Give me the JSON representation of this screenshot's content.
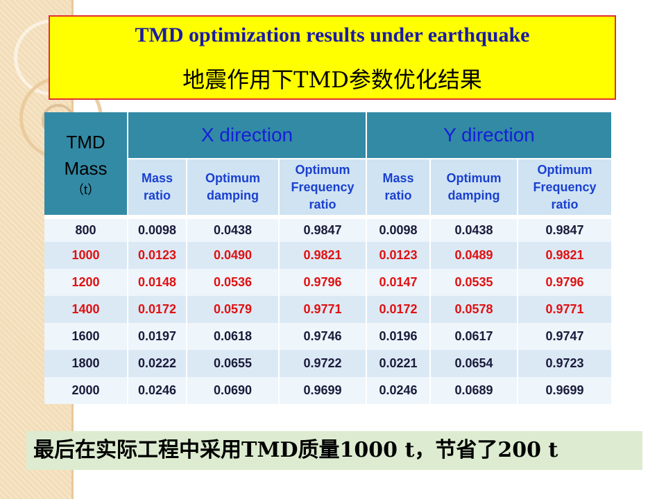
{
  "title": {
    "en": "TMD optimization results under earthquake",
    "zh": "地震作用下TMD参数优化结果"
  },
  "table": {
    "mass_header_line1": "TMD",
    "mass_header_line2": "Mass",
    "mass_header_unit": "（t）",
    "x_direction": "X direction",
    "y_direction": "Y direction",
    "sub_headers": {
      "mass_ratio": [
        "Mass",
        "ratio"
      ],
      "optimum_damping": [
        "Optimum",
        "damping"
      ],
      "optimum_frequency": [
        "Optimum",
        "Frequency",
        "ratio"
      ]
    },
    "rows": [
      {
        "mass": "800",
        "x_mr": "0.0098",
        "x_od": "0.0438",
        "x_of": "0.9847",
        "y_mr": "0.0098",
        "y_od": "0.0438",
        "y_of": "0.9847",
        "highlight": false
      },
      {
        "mass": "1000",
        "x_mr": "0.0123",
        "x_od": "0.0490",
        "x_of": "0.9821",
        "y_mr": "0.0123",
        "y_od": "0.0489",
        "y_of": "0.9821",
        "highlight": true
      },
      {
        "mass": "1200",
        "x_mr": "0.0148",
        "x_od": "0.0536",
        "x_of": "0.9796",
        "y_mr": "0.0147",
        "y_od": "0.0535",
        "y_of": "0.9796",
        "highlight": true
      },
      {
        "mass": "1400",
        "x_mr": "0.0172",
        "x_od": "0.0579",
        "x_of": "0.9771",
        "y_mr": "0.0172",
        "y_od": "0.0578",
        "y_of": "0.9771",
        "highlight": true
      },
      {
        "mass": "1600",
        "x_mr": "0.0197",
        "x_od": "0.0618",
        "x_of": "0.9746",
        "y_mr": "0.0196",
        "y_od": "0.0617",
        "y_of": "0.9747",
        "highlight": false
      },
      {
        "mass": "1800",
        "x_mr": "0.0222",
        "x_od": "0.0655",
        "x_of": "0.9722",
        "y_mr": "0.0221",
        "y_od": "0.0654",
        "y_of": "0.9723",
        "highlight": false
      },
      {
        "mass": "2000",
        "x_mr": "0.0246",
        "x_od": "0.0690",
        "x_of": "0.9699",
        "y_mr": "0.0246",
        "y_od": "0.0689",
        "y_of": "0.9699",
        "highlight": false
      }
    ]
  },
  "note": "最后在实际工程中采用TMD质量1000 t，节省了200 t",
  "colors": {
    "title_bg": "#ffff00",
    "title_border": "#e03030",
    "title_text": "#1a1aa6",
    "header_bg": "#338aa5",
    "direction_text": "#1420d8",
    "subheader_bg": "#cfe3f2",
    "highlight_text": "#e01010",
    "note_bg": "#ddecd0"
  }
}
